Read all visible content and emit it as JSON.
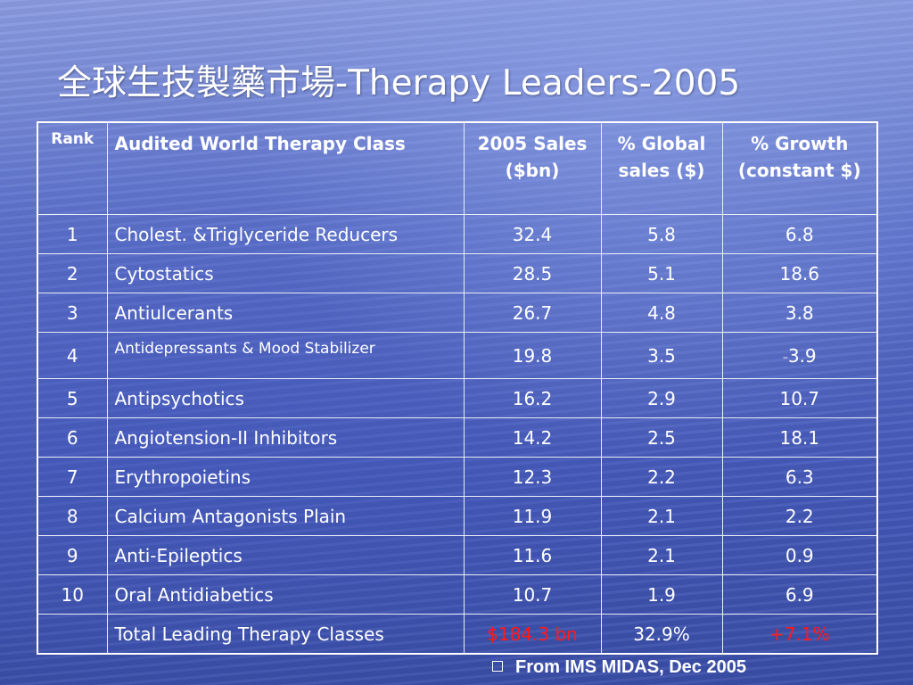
{
  "title": "全球生技製藥市場-Therapy Leaders-2005",
  "table": {
    "headers": {
      "rank": "Rank",
      "class": "Audited World Therapy Class",
      "sales": "2005 Sales ($bn)",
      "global": "% Global sales ($)",
      "growth": "% Growth (constant $)"
    },
    "rows": [
      {
        "rank": "1",
        "class": "Cholest. &Triglyceride Reducers",
        "sales": "32.4",
        "global": "5.8",
        "growth": "6.8"
      },
      {
        "rank": "2",
        "class": "Cytostatics",
        "sales": "28.5",
        "global": "5.1",
        "growth": "18.6"
      },
      {
        "rank": "3",
        "class": "Antiulcerants",
        "sales": "26.7",
        "global": "4.8",
        "growth": "3.8"
      },
      {
        "rank": "4",
        "class": "Antidepressants & Mood Stabilizer",
        "sales": "19.8",
        "global": "3.5",
        "growth_prefix": "–",
        "growth": "3.9"
      },
      {
        "rank": "5",
        "class": "Antipsychotics",
        "sales": "16.2",
        "global": "2.9",
        "growth": "10.7"
      },
      {
        "rank": "6",
        "class": "Angiotension-II Inhibitors",
        "sales": "14.2",
        "global": "2.5",
        "growth": "18.1"
      },
      {
        "rank": "7",
        "class": "Erythropoietins",
        "sales": "12.3",
        "global": "2.2",
        "growth": "6.3"
      },
      {
        "rank": "8",
        "class": "Calcium Antagonists Plain",
        "sales": "11.9",
        "global": "2.1",
        "growth": "2.2"
      },
      {
        "rank": "9",
        "class": "Anti-Epileptics",
        "sales": "11.6",
        "global": "2.1",
        "growth": "0.9"
      },
      {
        "rank": "10",
        "class": "Oral Antidiabetics",
        "sales": "10.7",
        "global": "1.9",
        "growth": "6.9"
      }
    ],
    "total": {
      "rank": "",
      "class": "Total Leading Therapy Classes",
      "sales": "$184.3 bn",
      "global": "32.9%",
      "growth": "+7.1%"
    }
  },
  "source": "From IMS MIDAS, Dec 2005",
  "colors": {
    "highlight": "#ff1a1a",
    "text": "#ffffff",
    "background": "#4a5fc0"
  }
}
